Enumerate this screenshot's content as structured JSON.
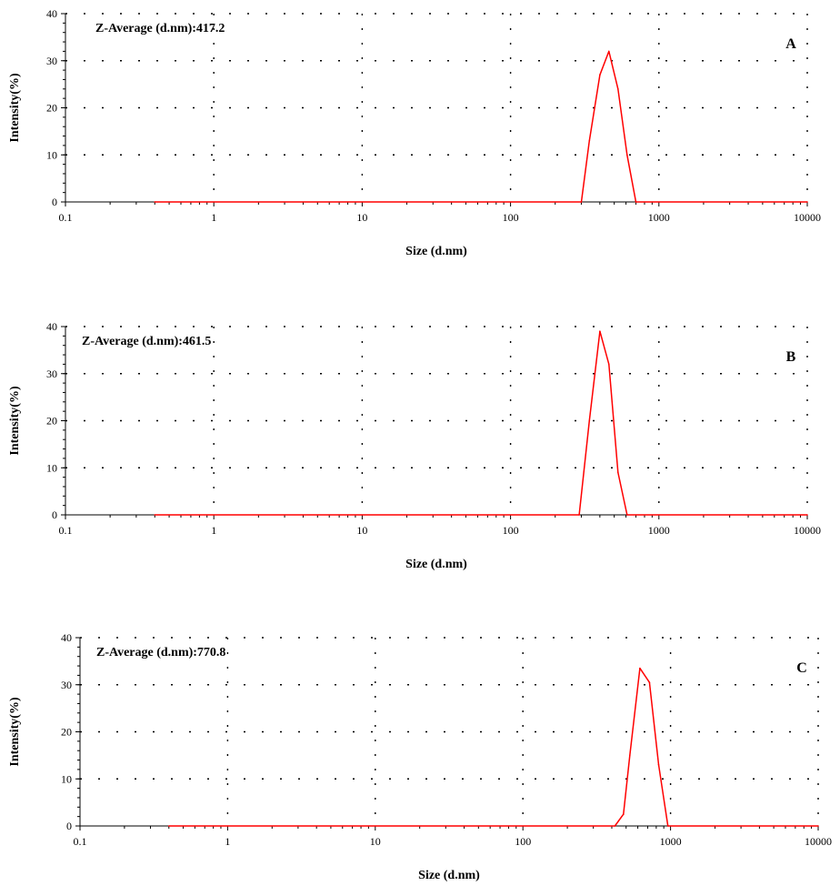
{
  "chart_data": [
    {
      "type": "line",
      "panel_label": "A",
      "annotation": "Z-Average (d.nm):417.2",
      "xlabel": "Size (d.nm)",
      "ylabel": "Intensity(%)",
      "xscale": "log",
      "xlim": [
        0.1,
        10000
      ],
      "ylim": [
        0,
        40
      ],
      "x_ticks": [
        "0.1",
        "1",
        "10",
        "100",
        "1000",
        "10000"
      ],
      "y_ticks": [
        "0",
        "10",
        "20",
        "30",
        "40"
      ],
      "grid": "dotted",
      "series": [
        {
          "color": "#ff0000",
          "x": [
            0.4,
            300,
            340,
            400,
            460,
            530,
            610,
            700,
            10000
          ],
          "y": [
            0,
            0,
            13,
            27,
            32,
            24,
            10,
            0,
            0
          ]
        }
      ]
    },
    {
      "type": "line",
      "panel_label": "B",
      "annotation": "Z-Average (d.nm):461.5",
      "xlabel": "Size (d.nm)",
      "ylabel": "Intensity(%)",
      "xscale": "log",
      "xlim": [
        0.1,
        10000
      ],
      "ylim": [
        0,
        40
      ],
      "x_ticks": [
        "0.1",
        "1",
        "10",
        "100",
        "1000",
        "10000"
      ],
      "y_ticks": [
        "0",
        "10",
        "20",
        "30",
        "40"
      ],
      "grid": "dotted",
      "series": [
        {
          "color": "#ff0000",
          "x": [
            0.4,
            290,
            340,
            400,
            460,
            530,
            610,
            10000
          ],
          "y": [
            0,
            0,
            20,
            39,
            32,
            9,
            0,
            0
          ]
        }
      ]
    },
    {
      "type": "line",
      "panel_label": "C",
      "annotation": "Z-Average (d.nm):770.8",
      "xlabel": "Size (d.nm)",
      "ylabel": "Intensity(%)",
      "xscale": "log",
      "xlim": [
        0.1,
        10000
      ],
      "ylim": [
        0,
        40
      ],
      "x_ticks": [
        "0.1",
        "1",
        "10",
        "100",
        "1000",
        "10000"
      ],
      "y_ticks": [
        "0",
        "10",
        "20",
        "30",
        "40"
      ],
      "grid": "dotted",
      "series": [
        {
          "color": "#ff0000",
          "x": [
            0.4,
            420,
            480,
            530,
            620,
            720,
            830,
            960,
            10000
          ],
          "y": [
            0,
            0,
            2.5,
            15,
            33.5,
            30.5,
            13,
            0,
            0
          ]
        }
      ]
    }
  ]
}
